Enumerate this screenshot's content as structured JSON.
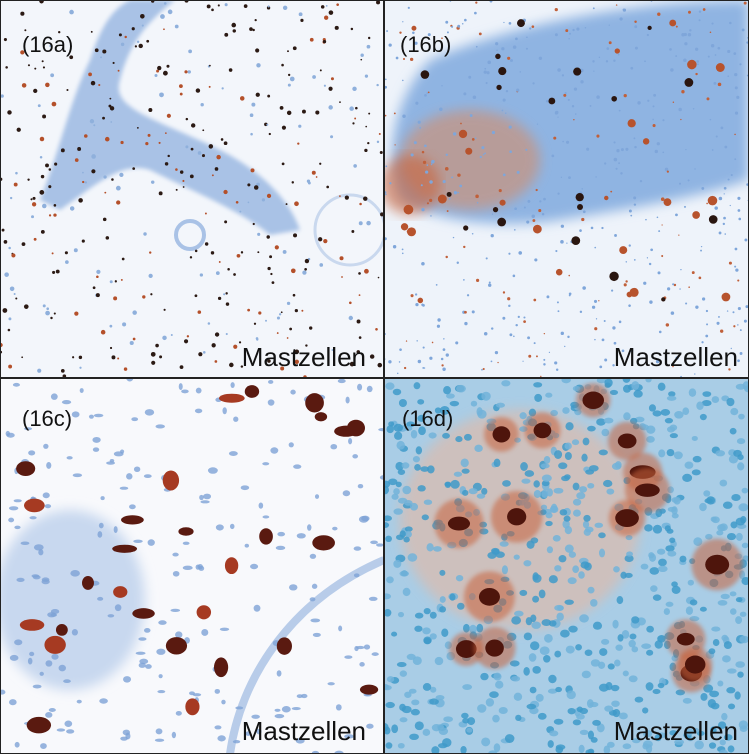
{
  "panels": [
    {
      "label": "(16a)",
      "caption": "Mastzellen"
    },
    {
      "label": "(16b)",
      "caption": "Mastzellen"
    },
    {
      "label": "(16c)",
      "caption": "Mastzellen"
    },
    {
      "label": "(16d)",
      "caption": "Mastzellen"
    }
  ]
}
